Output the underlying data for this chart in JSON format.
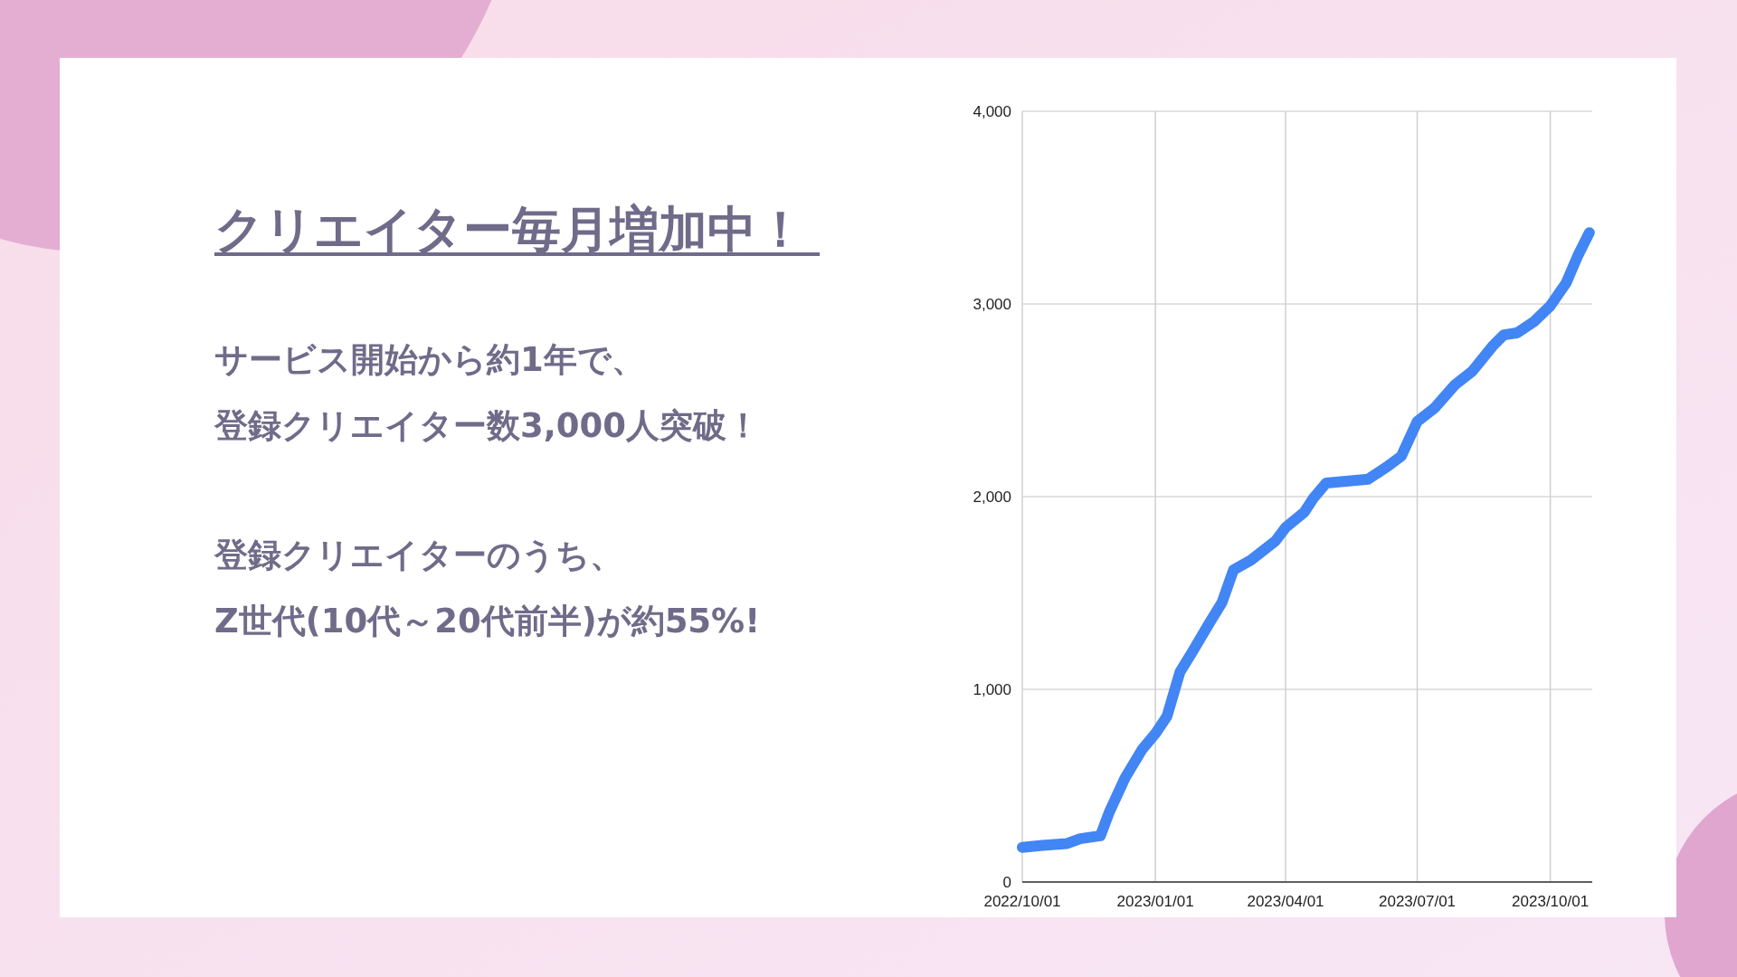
{
  "chart_data": {
    "type": "line",
    "title": "クリエイター毎月増加中！",
    "annotations": [
      "サービス開始から約1年で、",
      "登録クリエイター数3,000人突破！",
      "登録クリエイターのうち、",
      "Z世代(10代～20代前半)が約55%!"
    ],
    "x": [
      "2022-10-01",
      "2022-10-15",
      "2022-11-01",
      "2022-11-10",
      "2022-11-24",
      "2022-11-30",
      "2022-12-11",
      "2022-12-23",
      "2023-01-01",
      "2023-01-09",
      "2023-01-18",
      "2023-01-27",
      "2023-02-07",
      "2023-02-16",
      "2023-02-24",
      "2023-03-08",
      "2023-03-25",
      "2023-04-01",
      "2023-04-14",
      "2023-04-20",
      "2023-04-29",
      "2023-05-28",
      "2023-06-11",
      "2023-06-20",
      "2023-07-01",
      "2023-07-13",
      "2023-07-27",
      "2023-08-08",
      "2023-08-22",
      "2023-08-30",
      "2023-09-08",
      "2023-09-20",
      "2023-10-01",
      "2023-10-12",
      "2023-10-20",
      "2023-10-28"
    ],
    "series": [
      {
        "color": "#4285f4",
        "values": [
          180,
          190,
          200,
          225,
          240,
          360,
          540,
          690,
          770,
          860,
          1090,
          1200,
          1340,
          1450,
          1620,
          1670,
          1770,
          1840,
          1920,
          1990,
          2070,
          2090,
          2160,
          2210,
          2390,
          2460,
          2580,
          2650,
          2780,
          2840,
          2850,
          2910,
          2990,
          3110,
          3250,
          3370
        ]
      }
    ],
    "xlim": [
      "2022-10-01",
      "2023-10-30"
    ],
    "xticks": [
      {
        "value": "2022-10-01",
        "label": "2022/10/01"
      },
      {
        "value": "2023-01-01",
        "label": "2023/01/01"
      },
      {
        "value": "2023-04-01",
        "label": "2023/04/01"
      },
      {
        "value": "2023-07-01",
        "label": "2023/07/01"
      },
      {
        "value": "2023-10-01",
        "label": "2023/10/01"
      }
    ],
    "ylim": [
      0,
      4000
    ],
    "yticks": [
      0,
      {
        "value": 1000,
        "label": "1,000"
      },
      {
        "value": 2000,
        "label": "2,000"
      },
      {
        "value": 3000,
        "label": "3,000"
      },
      {
        "value": 4000,
        "label": "4,000"
      }
    ],
    "grid": true
  }
}
